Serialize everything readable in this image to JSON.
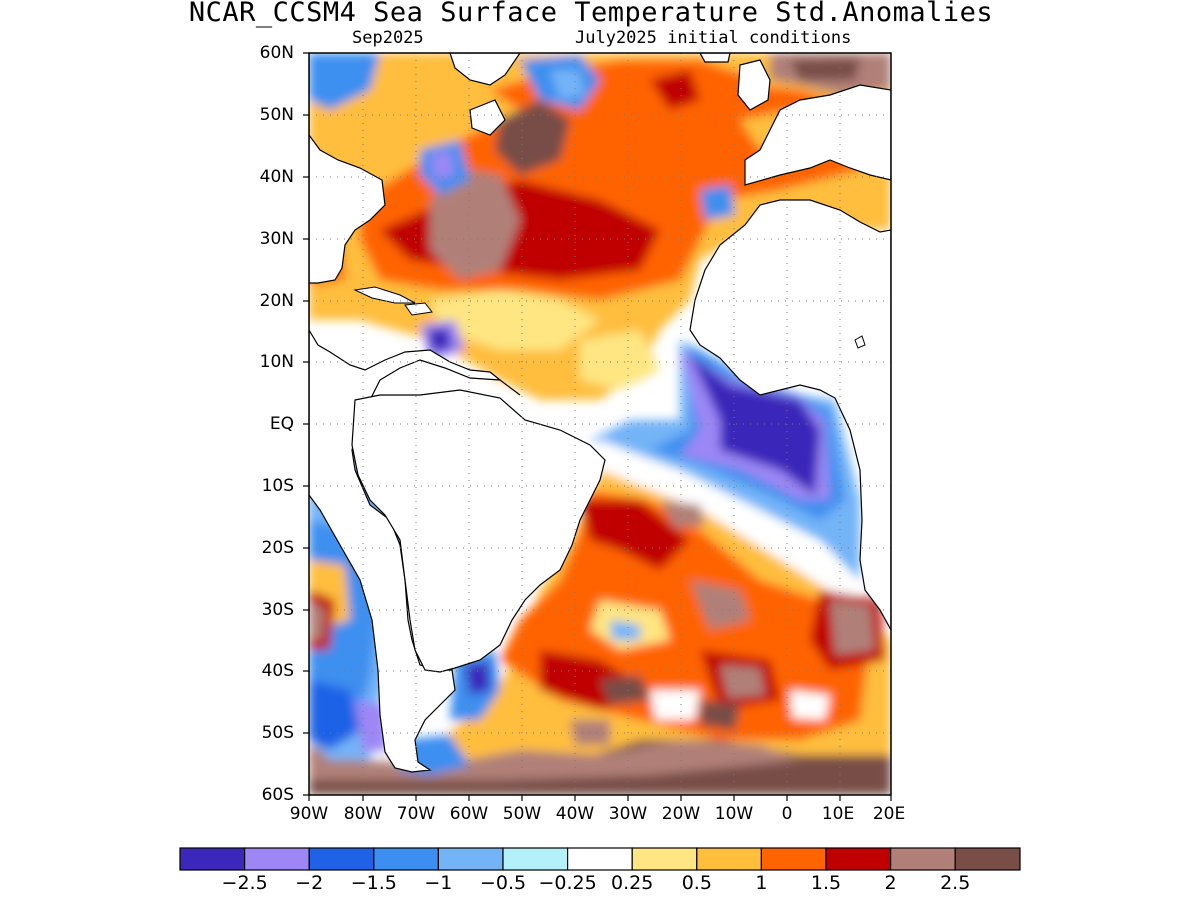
{
  "title": "NCAR_CCSM4 Sea Surface Temperature Std.Anomalies",
  "subtitle_left": "Sep2025",
  "subtitle_right": "July2025 initial conditions",
  "map": {
    "region": "Atlantic Ocean",
    "lat_range": [
      -60,
      60
    ],
    "lon_range": [
      -90,
      20
    ],
    "lat_labels": [
      "60N",
      "50N",
      "40N",
      "30N",
      "20N",
      "10N",
      "EQ",
      "10S",
      "20S",
      "30S",
      "40S",
      "50S",
      "60S"
    ],
    "lon_labels": [
      "90W",
      "80W",
      "70W",
      "60W",
      "50W",
      "40W",
      "30W",
      "20W",
      "10W",
      "0",
      "10E",
      "20E"
    ],
    "grid": "dotted"
  },
  "colorbar": {
    "colors": [
      "#3b27ba",
      "#9c87f5",
      "#1f62e6",
      "#3c8ff0",
      "#73b4f7",
      "#b4f0fa",
      "#ffffff",
      "#ffe682",
      "#ffbe3c",
      "#ff6400",
      "#c00000",
      "#b08078",
      "#784e46"
    ],
    "tick_labels": [
      "−2.5",
      "−2",
      "−1.5",
      "−1",
      "−0.5",
      "−0.25",
      "0.25",
      "0.5",
      "1",
      "1.5",
      "2",
      "2.5"
    ]
  }
}
